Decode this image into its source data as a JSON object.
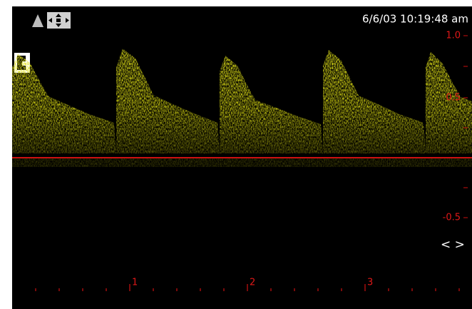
{
  "header": {
    "timestamp": "6/6/03 10:19:48 am"
  },
  "velocity_scale": {
    "labels": [
      "1.0",
      "0.5",
      "-0.5"
    ]
  },
  "scroll_control": "< >",
  "time_markers": [
    "1",
    "2",
    "3"
  ]
}
